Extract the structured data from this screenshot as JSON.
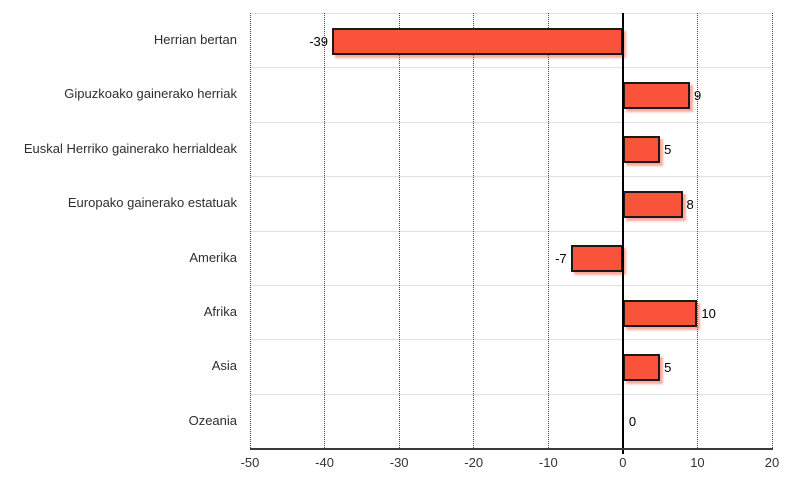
{
  "chart_data": {
    "type": "bar",
    "orientation": "horizontal",
    "title": "",
    "xlabel": "",
    "ylabel": "",
    "categories": [
      "Herrian bertan",
      "Gipuzkoako gainerako herriak",
      "Euskal Herriko gainerako herrialdeak",
      "Europako gainerako estatuak",
      "Amerika",
      "Afrika",
      "Asia",
      "Ozeania"
    ],
    "values": [
      -39,
      9,
      5,
      8,
      -7,
      10,
      5,
      0
    ],
    "value_labels": [
      "-39",
      "9",
      "5",
      "8",
      "-7",
      "10",
      "5",
      "0"
    ],
    "xlim": [
      -50,
      20
    ],
    "xticks": [
      -50,
      -40,
      -30,
      -20,
      -10,
      0,
      10,
      20
    ],
    "xtick_labels": [
      "-50",
      "-40",
      "-30",
      "-20",
      "-10",
      "0",
      "10",
      "20"
    ],
    "grid": "vertical dotted lines at each x tick",
    "row_separators": true,
    "legend": "none",
    "colors": {
      "background": "#FFFFFF",
      "bar_fill": "#F9533B",
      "bar_border": "#1A1A1A",
      "bar_shadow": "rgba(249,83,59,0.5)",
      "gridline": "#444444",
      "row_separator": "#E0E0E0",
      "axis_line": "#3A3A3A",
      "zero_line": "#000000",
      "category_text": "#2E2E2E",
      "tick_text": "#333333",
      "value_text": "#000000"
    }
  }
}
